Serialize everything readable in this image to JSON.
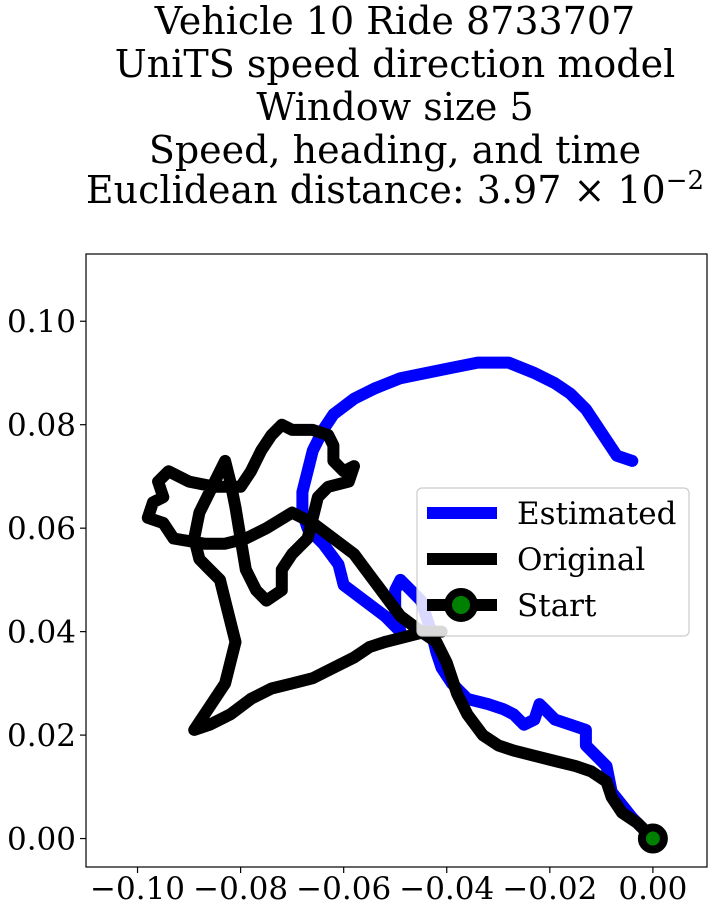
{
  "chart_data": {
    "type": "line",
    "title_lines": [
      "Vehicle 10 Ride 8733707",
      "UniTS speed direction model",
      "Window size 5",
      "Speed, heading, and time"
    ],
    "title_distance_prefix": "Euclidean distance: 3.97 × 10",
    "title_distance_exponent": "−2",
    "xlabel": "",
    "ylabel": "",
    "xlim": [
      -0.11,
      0.0105
    ],
    "ylim": [
      -0.0055,
      0.113
    ],
    "x_ticks": [
      -0.1,
      -0.08,
      -0.06,
      -0.04,
      -0.02,
      0.0
    ],
    "x_tick_labels": [
      "−0.10",
      "−0.08",
      "−0.06",
      "−0.04",
      "−0.02",
      "0.00"
    ],
    "y_ticks": [
      0.0,
      0.02,
      0.04,
      0.06,
      0.08,
      0.1
    ],
    "y_tick_labels": [
      "0.00",
      "0.02",
      "0.04",
      "0.06",
      "0.08",
      "0.10"
    ],
    "grid": false,
    "legend_position": "center-right",
    "series": [
      {
        "name": "Estimated",
        "color": "#0000ff",
        "points": [
          [
            0.0,
            0.0
          ],
          [
            -0.004,
            0.004
          ],
          [
            -0.008,
            0.009
          ],
          [
            -0.009,
            0.014
          ],
          [
            -0.011,
            0.016
          ],
          [
            -0.013,
            0.018
          ],
          [
            -0.013,
            0.021
          ],
          [
            -0.016,
            0.022
          ],
          [
            -0.019,
            0.023
          ],
          [
            -0.021,
            0.025
          ],
          [
            -0.022,
            0.026
          ],
          [
            -0.023,
            0.023
          ],
          [
            -0.025,
            0.022
          ],
          [
            -0.027,
            0.024
          ],
          [
            -0.029,
            0.025
          ],
          [
            -0.032,
            0.026
          ],
          [
            -0.036,
            0.027
          ],
          [
            -0.039,
            0.03
          ],
          [
            -0.041,
            0.033
          ],
          [
            -0.042,
            0.036
          ],
          [
            -0.043,
            0.04
          ],
          [
            -0.044,
            0.043
          ],
          [
            -0.045,
            0.046
          ],
          [
            -0.047,
            0.048
          ],
          [
            -0.049,
            0.05
          ],
          [
            -0.05,
            0.048
          ],
          [
            -0.05,
            0.044
          ],
          [
            -0.049,
            0.04
          ],
          [
            -0.052,
            0.043
          ],
          [
            -0.056,
            0.046
          ],
          [
            -0.06,
            0.049
          ],
          [
            -0.061,
            0.053
          ],
          [
            -0.064,
            0.057
          ],
          [
            -0.067,
            0.06
          ],
          [
            -0.068,
            0.063
          ],
          [
            -0.068,
            0.067
          ],
          [
            -0.067,
            0.071
          ],
          [
            -0.066,
            0.075
          ],
          [
            -0.064,
            0.079
          ],
          [
            -0.062,
            0.082
          ],
          [
            -0.058,
            0.085
          ],
          [
            -0.054,
            0.087
          ],
          [
            -0.049,
            0.089
          ],
          [
            -0.044,
            0.09
          ],
          [
            -0.039,
            0.091
          ],
          [
            -0.034,
            0.092
          ],
          [
            -0.028,
            0.092
          ],
          [
            -0.023,
            0.09
          ],
          [
            -0.019,
            0.088
          ],
          [
            -0.016,
            0.086
          ],
          [
            -0.013,
            0.083
          ],
          [
            -0.011,
            0.08
          ],
          [
            -0.009,
            0.077
          ],
          [
            -0.007,
            0.074
          ],
          [
            -0.004,
            0.073
          ]
        ]
      },
      {
        "name": "Original",
        "color": "#000000",
        "points": [
          [
            0.0,
            0.0
          ],
          [
            -0.003,
            0.003
          ],
          [
            -0.006,
            0.005
          ],
          [
            -0.008,
            0.008
          ],
          [
            -0.009,
            0.011
          ],
          [
            -0.012,
            0.013
          ],
          [
            -0.015,
            0.014
          ],
          [
            -0.019,
            0.015
          ],
          [
            -0.023,
            0.016
          ],
          [
            -0.027,
            0.017
          ],
          [
            -0.03,
            0.018
          ],
          [
            -0.033,
            0.02
          ],
          [
            -0.036,
            0.024
          ],
          [
            -0.038,
            0.028
          ],
          [
            -0.04,
            0.034
          ],
          [
            -0.042,
            0.038
          ],
          [
            -0.045,
            0.04
          ],
          [
            -0.049,
            0.043
          ],
          [
            -0.052,
            0.047
          ],
          [
            -0.055,
            0.051
          ],
          [
            -0.058,
            0.055
          ],
          [
            -0.062,
            0.058
          ],
          [
            -0.066,
            0.061
          ],
          [
            -0.07,
            0.063
          ],
          [
            -0.075,
            0.06
          ],
          [
            -0.079,
            0.058
          ],
          [
            -0.083,
            0.057
          ],
          [
            -0.087,
            0.057
          ],
          [
            -0.093,
            0.058
          ],
          [
            -0.095,
            0.061
          ],
          [
            -0.098,
            0.062
          ],
          [
            -0.097,
            0.065
          ],
          [
            -0.095,
            0.066
          ],
          [
            -0.096,
            0.069
          ],
          [
            -0.094,
            0.071
          ],
          [
            -0.09,
            0.069
          ],
          [
            -0.085,
            0.068
          ],
          [
            -0.08,
            0.068
          ],
          [
            -0.078,
            0.071
          ],
          [
            -0.076,
            0.075
          ],
          [
            -0.074,
            0.078
          ],
          [
            -0.072,
            0.08
          ],
          [
            -0.07,
            0.079
          ],
          [
            -0.066,
            0.079
          ],
          [
            -0.063,
            0.078
          ],
          [
            -0.062,
            0.076
          ],
          [
            -0.062,
            0.073
          ],
          [
            -0.06,
            0.071
          ],
          [
            -0.058,
            0.072
          ],
          [
            -0.059,
            0.069
          ],
          [
            -0.063,
            0.068
          ],
          [
            -0.065,
            0.066
          ],
          [
            -0.066,
            0.062
          ],
          [
            -0.067,
            0.058
          ],
          [
            -0.07,
            0.055
          ],
          [
            -0.072,
            0.052
          ],
          [
            -0.072,
            0.048
          ],
          [
            -0.075,
            0.046
          ],
          [
            -0.077,
            0.048
          ],
          [
            -0.079,
            0.052
          ],
          [
            -0.08,
            0.058
          ],
          [
            -0.081,
            0.064
          ],
          [
            -0.082,
            0.069
          ],
          [
            -0.083,
            0.073
          ],
          [
            -0.085,
            0.069
          ],
          [
            -0.088,
            0.063
          ],
          [
            -0.089,
            0.058
          ],
          [
            -0.088,
            0.054
          ],
          [
            -0.086,
            0.052
          ],
          [
            -0.084,
            0.05
          ],
          [
            -0.083,
            0.046
          ],
          [
            -0.082,
            0.042
          ],
          [
            -0.081,
            0.038
          ],
          [
            -0.082,
            0.034
          ],
          [
            -0.083,
            0.03
          ],
          [
            -0.085,
            0.027
          ],
          [
            -0.087,
            0.024
          ],
          [
            -0.089,
            0.021
          ],
          [
            -0.086,
            0.022
          ],
          [
            -0.082,
            0.024
          ],
          [
            -0.078,
            0.027
          ],
          [
            -0.074,
            0.029
          ],
          [
            -0.07,
            0.03
          ],
          [
            -0.066,
            0.031
          ],
          [
            -0.062,
            0.033
          ],
          [
            -0.058,
            0.035
          ],
          [
            -0.055,
            0.037
          ],
          [
            -0.052,
            0.038
          ],
          [
            -0.048,
            0.039
          ],
          [
            -0.044,
            0.04
          ],
          [
            -0.041,
            0.04
          ]
        ]
      }
    ],
    "start_point": {
      "name": "Start",
      "x": 0.0,
      "y": 0.0,
      "marker_color": "#008000",
      "edge_color": "#000000"
    }
  }
}
